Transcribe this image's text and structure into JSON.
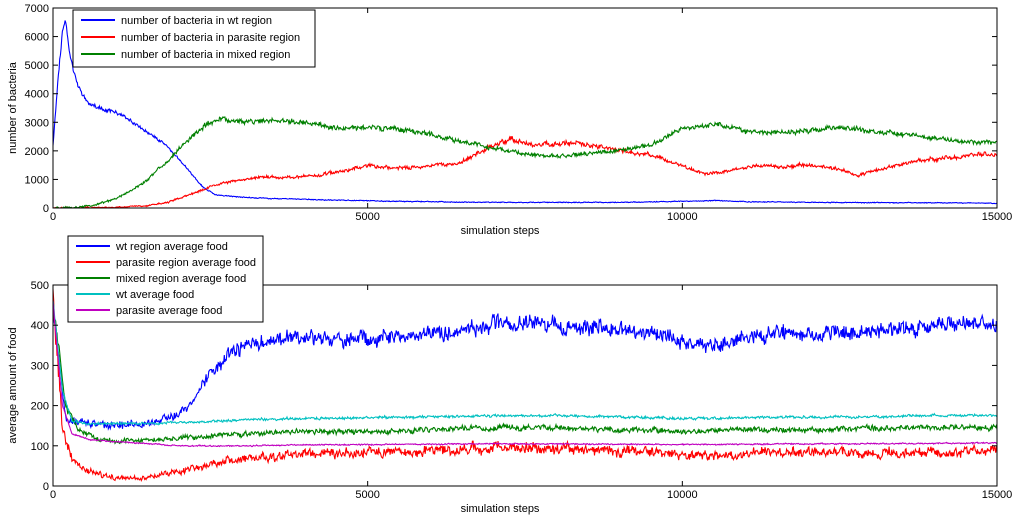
{
  "chart_data": [
    {
      "type": "line",
      "xlabel": "simulation steps",
      "ylabel": "number of bacteria",
      "xlim": [
        0,
        15000
      ],
      "ylim": [
        0,
        7000
      ],
      "xticks": [
        "0",
        "5000",
        "10000",
        "15000"
      ],
      "yticks": [
        "0",
        "1000",
        "2000",
        "3000",
        "4000",
        "5000",
        "6000",
        "7000"
      ],
      "legend_position": "top-left",
      "series": [
        {
          "name": "number of bacteria in wt region",
          "color": "#0000ff",
          "points": [
            [
              0,
              2200
            ],
            [
              80,
              4500
            ],
            [
              150,
              6200
            ],
            [
              200,
              6500
            ],
            [
              280,
              5200
            ],
            [
              400,
              4200
            ],
            [
              600,
              3600
            ],
            [
              800,
              3450
            ],
            [
              1000,
              3350
            ],
            [
              1200,
              3100
            ],
            [
              1400,
              2800
            ],
            [
              1600,
              2500
            ],
            [
              1800,
              2200
            ],
            [
              2000,
              1700
            ],
            [
              2200,
              1200
            ],
            [
              2400,
              700
            ],
            [
              2600,
              450
            ],
            [
              3000,
              380
            ],
            [
              3500,
              330
            ],
            [
              4000,
              300
            ],
            [
              5000,
              250
            ],
            [
              6000,
              220
            ],
            [
              7000,
              200
            ],
            [
              8000,
              190
            ],
            [
              9000,
              200
            ],
            [
              10000,
              230
            ],
            [
              10500,
              260
            ],
            [
              11000,
              220
            ],
            [
              12000,
              200
            ],
            [
              13000,
              190
            ],
            [
              14000,
              180
            ],
            [
              15000,
              170
            ]
          ]
        },
        {
          "name": "number of bacteria in parasite region",
          "color": "#ff0000",
          "points": [
            [
              0,
              0
            ],
            [
              500,
              10
            ],
            [
              1000,
              30
            ],
            [
              1500,
              80
            ],
            [
              1800,
              180
            ],
            [
              2100,
              420
            ],
            [
              2400,
              650
            ],
            [
              2700,
              880
            ],
            [
              3000,
              1000
            ],
            [
              3400,
              1100
            ],
            [
              3800,
              1050
            ],
            [
              4200,
              1150
            ],
            [
              4600,
              1300
            ],
            [
              5000,
              1450
            ],
            [
              5500,
              1400
            ],
            [
              6000,
              1450
            ],
            [
              6500,
              1600
            ],
            [
              7000,
              2200
            ],
            [
              7300,
              2400
            ],
            [
              7600,
              2200
            ],
            [
              8000,
              2250
            ],
            [
              8300,
              2300
            ],
            [
              8800,
              2100
            ],
            [
              9200,
              1950
            ],
            [
              9600,
              1800
            ],
            [
              10000,
              1450
            ],
            [
              10400,
              1200
            ],
            [
              10800,
              1300
            ],
            [
              11200,
              1500
            ],
            [
              11600,
              1450
            ],
            [
              12000,
              1500
            ],
            [
              12400,
              1400
            ],
            [
              12800,
              1150
            ],
            [
              13200,
              1400
            ],
            [
              13600,
              1600
            ],
            [
              14000,
              1700
            ],
            [
              14400,
              1800
            ],
            [
              14800,
              1900
            ],
            [
              15000,
              1850
            ]
          ]
        },
        {
          "name": "number of bacteria in mixed region",
          "color": "#008000",
          "points": [
            [
              0,
              0
            ],
            [
              300,
              20
            ],
            [
              600,
              80
            ],
            [
              900,
              250
            ],
            [
              1200,
              550
            ],
            [
              1500,
              1000
            ],
            [
              1800,
              1600
            ],
            [
              2100,
              2300
            ],
            [
              2400,
              2900
            ],
            [
              2700,
              3100
            ],
            [
              3000,
              3000
            ],
            [
              3500,
              3050
            ],
            [
              4000,
              3000
            ],
            [
              4500,
              2800
            ],
            [
              5000,
              2800
            ],
            [
              5500,
              2750
            ],
            [
              6000,
              2600
            ],
            [
              6500,
              2300
            ],
            [
              7000,
              2100
            ],
            [
              7500,
              1900
            ],
            [
              8000,
              1800
            ],
            [
              8500,
              1900
            ],
            [
              9000,
              2000
            ],
            [
              9500,
              2200
            ],
            [
              10000,
              2800
            ],
            [
              10500,
              2950
            ],
            [
              11000,
              2700
            ],
            [
              11500,
              2650
            ],
            [
              12000,
              2700
            ],
            [
              12500,
              2800
            ],
            [
              13000,
              2700
            ],
            [
              13500,
              2550
            ],
            [
              14000,
              2450
            ],
            [
              14500,
              2300
            ],
            [
              15000,
              2300
            ]
          ]
        }
      ]
    },
    {
      "type": "line",
      "xlabel": "simulation steps",
      "ylabel": "average amount of food",
      "xlim": [
        0,
        15000
      ],
      "ylim": [
        0,
        500
      ],
      "xticks": [
        "0",
        "5000",
        "10000",
        "15000"
      ],
      "yticks": [
        "0",
        "100",
        "200",
        "300",
        "400",
        "500"
      ],
      "legend_position": "top-left",
      "series": [
        {
          "name": "wt region average food",
          "color": "#0000ff",
          "points": [
            [
              0,
              450
            ],
            [
              100,
              300
            ],
            [
              200,
              170
            ],
            [
              400,
              160
            ],
            [
              800,
              150
            ],
            [
              1200,
              150
            ],
            [
              1600,
              160
            ],
            [
              2000,
              180
            ],
            [
              2200,
              210
            ],
            [
              2500,
              280
            ],
            [
              2800,
              330
            ],
            [
              3200,
              355
            ],
            [
              3600,
              360
            ],
            [
              4000,
              370
            ],
            [
              4500,
              360
            ],
            [
              5000,
              370
            ],
            [
              5500,
              370
            ],
            [
              6000,
              380
            ],
            [
              6500,
              390
            ],
            [
              7000,
              400
            ],
            [
              7500,
              410
            ],
            [
              8000,
              400
            ],
            [
              8500,
              395
            ],
            [
              9000,
              390
            ],
            [
              9500,
              380
            ],
            [
              10000,
              360
            ],
            [
              10500,
              350
            ],
            [
              11000,
              370
            ],
            [
              11500,
              380
            ],
            [
              12000,
              375
            ],
            [
              12500,
              380
            ],
            [
              13000,
              385
            ],
            [
              13500,
              390
            ],
            [
              14000,
              395
            ],
            [
              14500,
              400
            ],
            [
              15000,
              400
            ]
          ]
        },
        {
          "name": "parasite region average food",
          "color": "#ff0000",
          "points": [
            [
              0,
              450
            ],
            [
              150,
              150
            ],
            [
              300,
              60
            ],
            [
              500,
              40
            ],
            [
              700,
              30
            ],
            [
              1000,
              20
            ],
            [
              1300,
              20
            ],
            [
              1600,
              25
            ],
            [
              2000,
              35
            ],
            [
              2400,
              50
            ],
            [
              2800,
              65
            ],
            [
              3200,
              70
            ],
            [
              3600,
              75
            ],
            [
              4000,
              80
            ],
            [
              4500,
              80
            ],
            [
              5000,
              85
            ],
            [
              5500,
              85
            ],
            [
              6000,
              90
            ],
            [
              6500,
              90
            ],
            [
              7000,
              95
            ],
            [
              7500,
              95
            ],
            [
              8000,
              95
            ],
            [
              8500,
              90
            ],
            [
              9000,
              85
            ],
            [
              9500,
              85
            ],
            [
              10000,
              75
            ],
            [
              10500,
              75
            ],
            [
              11000,
              80
            ],
            [
              11500,
              85
            ],
            [
              12000,
              85
            ],
            [
              12500,
              85
            ],
            [
              13000,
              80
            ],
            [
              13500,
              80
            ],
            [
              14000,
              85
            ],
            [
              14500,
              85
            ],
            [
              15000,
              90
            ]
          ]
        },
        {
          "name": "mixed region average food",
          "color": "#008000",
          "points": [
            [
              0,
              450
            ],
            [
              100,
              330
            ],
            [
              200,
              200
            ],
            [
              400,
              140
            ],
            [
              700,
              120
            ],
            [
              1000,
              110
            ],
            [
              1500,
              115
            ],
            [
              2000,
              120
            ],
            [
              2500,
              125
            ],
            [
              3000,
              130
            ],
            [
              4000,
              135
            ],
            [
              5000,
              135
            ],
            [
              6000,
              140
            ],
            [
              7000,
              145
            ],
            [
              8000,
              145
            ],
            [
              9000,
              140
            ],
            [
              10000,
              135
            ],
            [
              11000,
              140
            ],
            [
              12000,
              140
            ],
            [
              13000,
              145
            ],
            [
              14000,
              145
            ],
            [
              15000,
              145
            ]
          ]
        },
        {
          "name": "wt average food",
          "color": "#00c0c0",
          "points": [
            [
              0,
              460
            ],
            [
              150,
              240
            ],
            [
              300,
              160
            ],
            [
              600,
              155
            ],
            [
              1000,
              155
            ],
            [
              1500,
              155
            ],
            [
              2000,
              158
            ],
            [
              2500,
              160
            ],
            [
              3000,
              165
            ],
            [
              4000,
              168
            ],
            [
              5000,
              170
            ],
            [
              6000,
              172
            ],
            [
              7000,
              175
            ],
            [
              8000,
              175
            ],
            [
              9000,
              172
            ],
            [
              10000,
              168
            ],
            [
              11000,
              170
            ],
            [
              12000,
              172
            ],
            [
              13000,
              172
            ],
            [
              14000,
              175
            ],
            [
              15000,
              175
            ]
          ]
        },
        {
          "name": "parasite average food",
          "color": "#c000c0",
          "points": [
            [
              0,
              460
            ],
            [
              150,
              200
            ],
            [
              300,
              130
            ],
            [
              600,
              115
            ],
            [
              1000,
              110
            ],
            [
              1500,
              105
            ],
            [
              2000,
              100
            ],
            [
              2500,
              100
            ],
            [
              3000,
              100
            ],
            [
              4000,
              102
            ],
            [
              5000,
              103
            ],
            [
              6000,
              104
            ],
            [
              7000,
              105
            ],
            [
              8000,
              105
            ],
            [
              9000,
              104
            ],
            [
              10000,
              103
            ],
            [
              11000,
              104
            ],
            [
              12000,
              105
            ],
            [
              13000,
              105
            ],
            [
              14000,
              106
            ],
            [
              15000,
              107
            ]
          ]
        }
      ]
    }
  ]
}
